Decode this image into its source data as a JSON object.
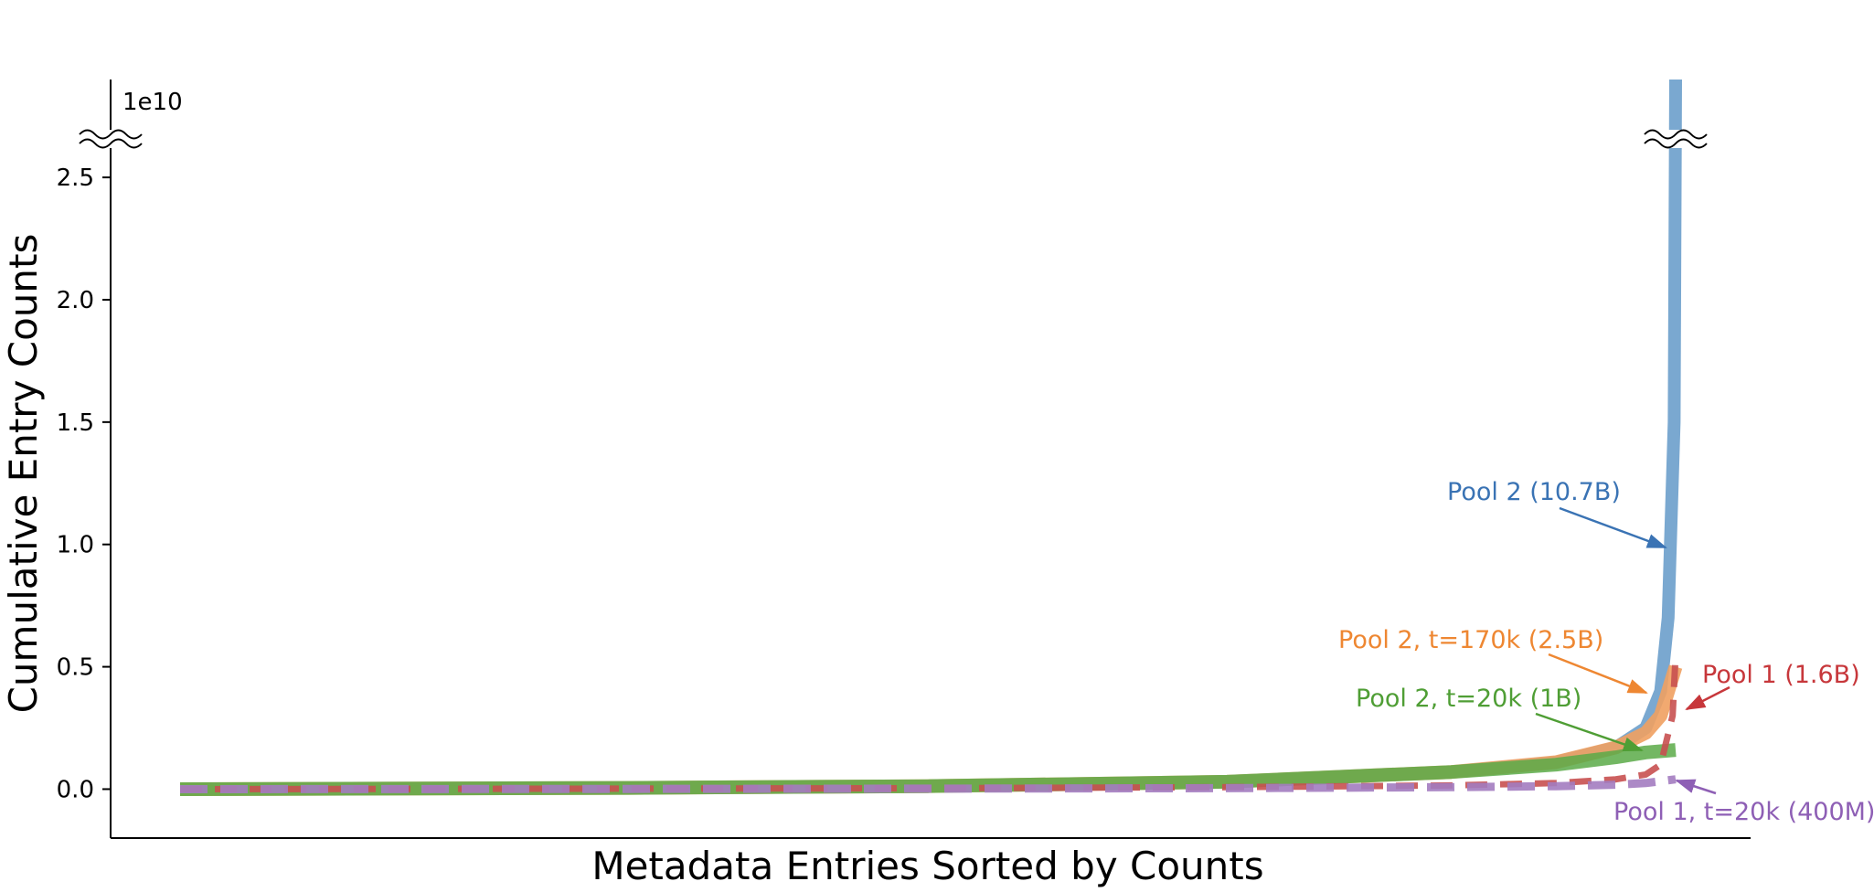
{
  "chart_data": {
    "type": "line",
    "xlabel": "Metadata Entries Sorted by Counts",
    "ylabel": "Cumulative Entry Counts",
    "y_multiplier_label": "1e10",
    "ylim": [
      -0.2,
      2.9
    ],
    "y_axis_break": true,
    "yticks": [
      0.0,
      0.5,
      1.0,
      1.5,
      2.0,
      2.5
    ],
    "ytick_labels": [
      "0.0",
      "0.5",
      "1.0",
      "1.5",
      "2.0",
      "2.5"
    ],
    "x_tick_labels_shown": false,
    "series": [
      {
        "key": "pool2",
        "label": "Pool 2 (10.7B)",
        "color": "#6b9fcb",
        "label_color": "#3a73b4",
        "style": "solid",
        "x": [
          0,
          0.3,
          0.5,
          0.7,
          0.85,
          0.92,
          0.96,
          0.98,
          0.99,
          0.995,
          0.999,
          1.0
        ],
        "y": [
          0,
          0.005,
          0.012,
          0.03,
          0.07,
          0.11,
          0.17,
          0.25,
          0.4,
          0.7,
          1.5,
          2.9
        ]
      },
      {
        "key": "pool2_t170k",
        "label": "Pool 2, t=170k (2.5B)",
        "color": "#f0a060",
        "label_color": "#ee8732",
        "style": "solid",
        "x": [
          0,
          0.3,
          0.5,
          0.7,
          0.85,
          0.92,
          0.96,
          0.98,
          0.99,
          1.0
        ],
        "y": [
          0,
          0.005,
          0.012,
          0.03,
          0.07,
          0.11,
          0.17,
          0.23,
          0.3,
          0.5
        ]
      },
      {
        "key": "pool2_t20k",
        "label": "Pool 2, t=20k (1B)",
        "color": "#5aaa48",
        "label_color": "#4f9e35",
        "style": "solid",
        "x": [
          0,
          0.3,
          0.5,
          0.7,
          0.85,
          0.92,
          0.96,
          0.98,
          1.0
        ],
        "y": [
          0,
          0.005,
          0.012,
          0.03,
          0.07,
          0.1,
          0.13,
          0.15,
          0.16
        ]
      },
      {
        "key": "pool1",
        "label": "Pool 1 (1.6B)",
        "color": "#c85050",
        "label_color": "#c7373b",
        "style": "dashed",
        "x": [
          0,
          0.3,
          0.5,
          0.7,
          0.85,
          0.92,
          0.96,
          0.98,
          0.99,
          0.998,
          1.0
        ],
        "y": [
          0,
          0.002,
          0.004,
          0.008,
          0.015,
          0.025,
          0.04,
          0.06,
          0.1,
          0.3,
          0.55
        ]
      },
      {
        "key": "pool1_t20k",
        "label": "Pool 1, t=20k (400M)",
        "color": "#a37cc0",
        "label_color": "#8e5fb5",
        "style": "dashed",
        "x": [
          0,
          0.3,
          0.5,
          0.7,
          0.85,
          0.92,
          0.96,
          0.98,
          1.0
        ],
        "y": [
          0,
          0.001,
          0.002,
          0.004,
          0.008,
          0.012,
          0.018,
          0.025,
          0.04
        ]
      }
    ]
  }
}
